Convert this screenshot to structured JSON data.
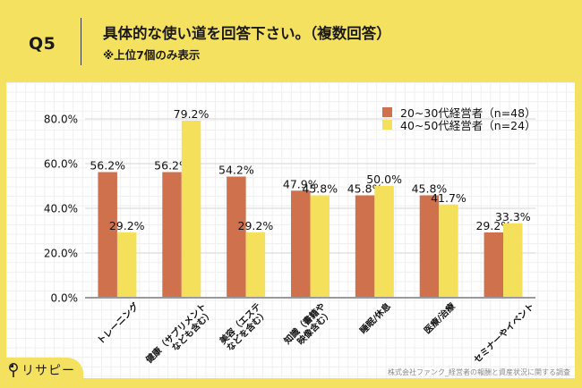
{
  "header": {
    "question_no": "Q5",
    "title": "具体的な使い道を回答下さい。（複数回答）",
    "subtitle": "※上位7個のみ表示"
  },
  "chart_data": {
    "type": "bar",
    "title": "具体的な使い道を回答下さい。（複数回答）",
    "xlabel": "",
    "ylabel": "",
    "categories": [
      [
        "トレーニング"
      ],
      [
        "健康（サプリメント",
        "なども含む）"
      ],
      [
        "美容（エステ",
        "などを含む）"
      ],
      [
        "知識（書籍や",
        "映像含む）"
      ],
      [
        "睡眠/休息"
      ],
      [
        "医療/治療"
      ],
      [
        "セミナーやイベント"
      ]
    ],
    "series": [
      {
        "name": "20~30代経営者（n=48）",
        "color": "#D0714E",
        "values": [
          56.2,
          56.2,
          54.2,
          47.9,
          45.8,
          45.8,
          29.2
        ]
      },
      {
        "name": "40~50代経営者（n=24）",
        "color": "#F4E05A",
        "values": [
          29.2,
          79.2,
          29.2,
          45.8,
          50.0,
          41.7,
          33.3
        ]
      }
    ],
    "ylim": [
      0,
      80
    ],
    "yticks": [
      0,
      20,
      40,
      60,
      80
    ],
    "ytick_labels": [
      "0.0%",
      "20.0%",
      "40.0%",
      "60.0%",
      "80.0%"
    ],
    "value_suffix": "%",
    "grid": true,
    "legend": "top-right"
  },
  "footer": {
    "logo_text": "リサピー",
    "source": "株式会社ファンク_経営者の報酬と資産状況に関する調査"
  }
}
